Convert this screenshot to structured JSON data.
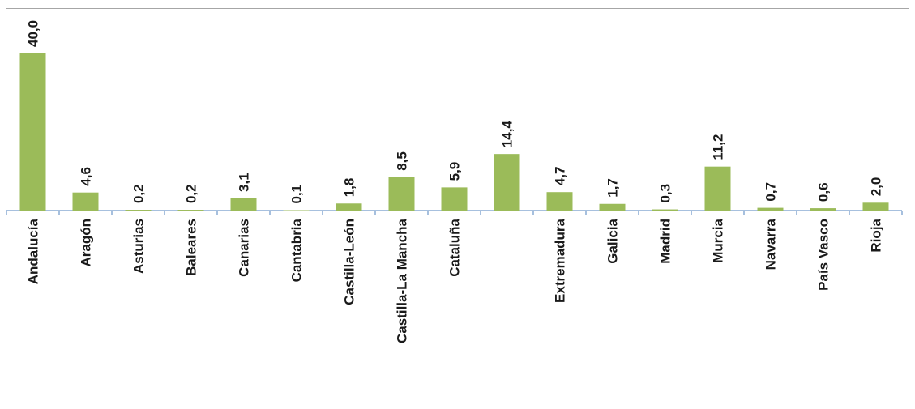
{
  "chart_data": {
    "type": "bar",
    "title": "",
    "xlabel": "",
    "ylabel": "",
    "ylim": [
      0,
      40
    ],
    "categories": [
      "Andalucía",
      "Aragón",
      "Asturias",
      "Baleares",
      "Canarias",
      "Cantabria",
      "Castilla-León",
      "Castilla-La Mancha",
      "Cataluña",
      "",
      "Extremadura",
      "Galicia",
      "Madrid",
      "Murcia",
      "Navarra",
      "País Vasco",
      "Rioja"
    ],
    "values": [
      40.0,
      4.6,
      0.2,
      0.2,
      3.1,
      0.1,
      1.8,
      8.5,
      5.9,
      14.4,
      4.7,
      1.7,
      0.3,
      11.2,
      0.7,
      0.6,
      2.0
    ],
    "data_labels": [
      "40,0",
      "4,6",
      "0,2",
      "0,2",
      "3,1",
      "0,1",
      "1,8",
      "8,5",
      "5,9",
      "14,4",
      "4,7",
      "1,7",
      "0,3",
      "11,2",
      "0,7",
      "0,6",
      "2,0"
    ],
    "grid": false,
    "legend": "none",
    "colors": {
      "bar": "#9bbb59",
      "axis": "#4f81bd",
      "border": "#a6a6a6",
      "text": "#1a1a1a"
    }
  }
}
